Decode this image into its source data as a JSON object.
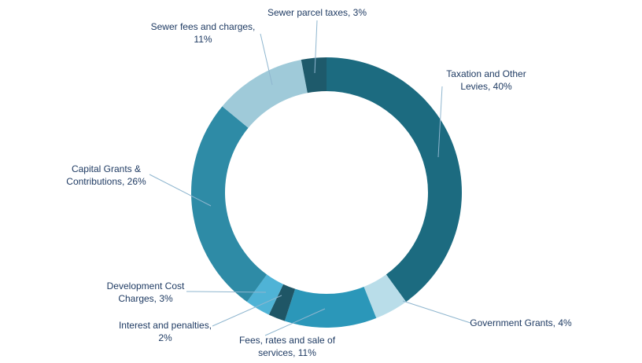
{
  "chart_data": {
    "type": "pie",
    "donut": true,
    "title": "",
    "unit": "%",
    "slices": [
      {
        "name": "Taxation and Other Levies",
        "value": 40,
        "label_lines": [
          "Taxation and Other",
          "Levies, 40%"
        ],
        "color": "#1c6b80"
      },
      {
        "name": "Government Grants",
        "value": 4,
        "label_lines": [
          "Government Grants, 4%"
        ],
        "color": "#b9dde9"
      },
      {
        "name": "Fees, rates and sale of services",
        "value": 11,
        "label_lines": [
          "Fees, rates and sale of",
          "services, 11%"
        ],
        "color": "#2b97b9"
      },
      {
        "name": "Interest and penalties",
        "value": 2,
        "label_lines": [
          "Interest and penalties,",
          "2%"
        ],
        "color": "#1f5666"
      },
      {
        "name": "Development Cost Charges",
        "value": 3,
        "label_lines": [
          "Development Cost",
          "Charges, 3%"
        ],
        "color": "#4fb3d6"
      },
      {
        "name": "Capital Grants & Contributions",
        "value": 26,
        "label_lines": [
          "Capital Grants &",
          "Contributions, 26%"
        ],
        "color": "#2e8ba6"
      },
      {
        "name": "Sewer fees and charges",
        "value": 11,
        "label_lines": [
          "Sewer fees and charges,",
          "11%"
        ],
        "color": "#9fcad9"
      },
      {
        "name": "Sewer parcel taxes",
        "value": 3,
        "label_lines": [
          "Sewer parcel taxes, 3%"
        ],
        "color": "#1e5a6b"
      }
    ]
  }
}
